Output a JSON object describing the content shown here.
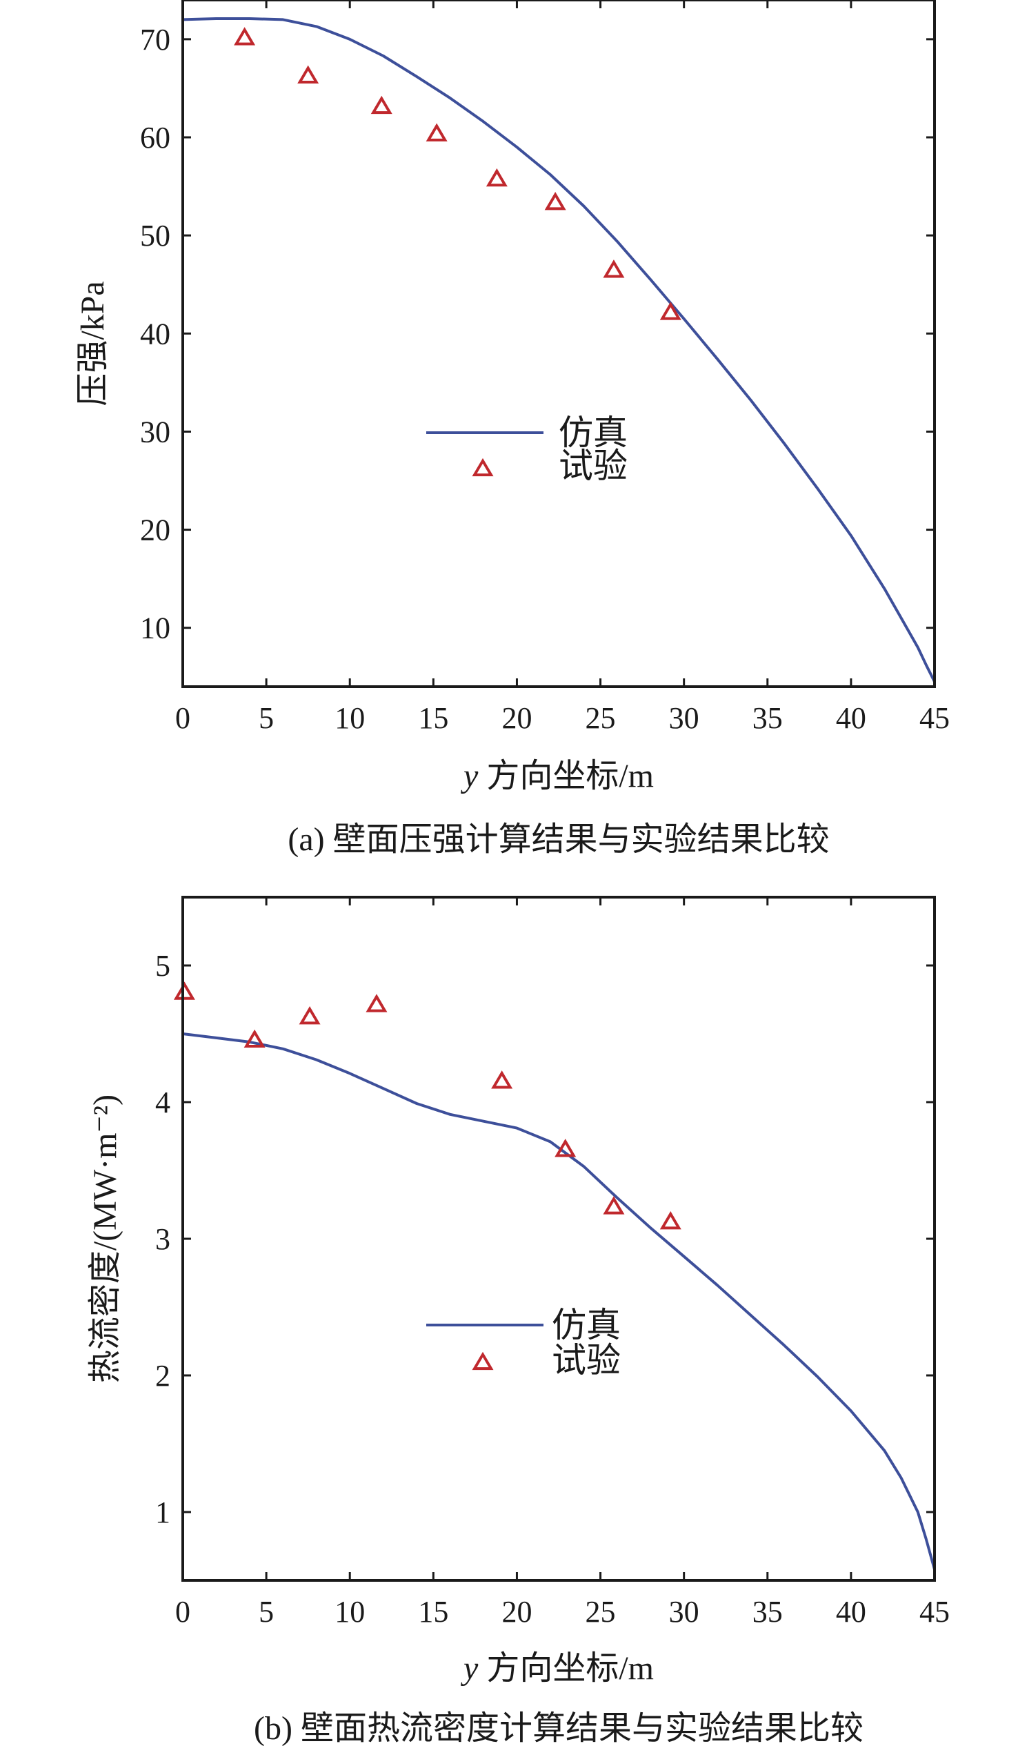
{
  "chart_data": [
    {
      "type": "line",
      "caption": "(a) 壁面压强计算结果与实验结果比较",
      "xlabel_var": "y",
      "xlabel_rest": " 方向坐标/m",
      "ylabel": "压强/kPa",
      "xlim": [
        0,
        45
      ],
      "ylim": [
        4,
        74
      ],
      "xticks": [
        0,
        5,
        10,
        15,
        20,
        25,
        30,
        35,
        40,
        45
      ],
      "yticks": [
        10,
        20,
        30,
        40,
        50,
        60,
        70
      ],
      "legend_position": "center",
      "colors": {
        "line": "#3d4f9a",
        "marker": "#c0282d",
        "axis": "#1a1a1a"
      },
      "series": [
        {
          "name": "仿真",
          "style": "line",
          "x": [
            0,
            2,
            4,
            6,
            8,
            10,
            12,
            14,
            16,
            18,
            20,
            22,
            24,
            26,
            28,
            30,
            32,
            34,
            36,
            38,
            40,
            42,
            43,
            44,
            44.5,
            45
          ],
          "y": [
            72,
            72.1,
            72.1,
            72,
            71.3,
            70,
            68.3,
            66.2,
            64,
            61.6,
            59,
            56.2,
            53,
            49.4,
            45.5,
            41.5,
            37.4,
            33.2,
            28.8,
            24.2,
            19.4,
            14,
            11,
            8,
            6.2,
            4.5
          ]
        },
        {
          "name": "试验",
          "style": "marker",
          "marker": "triangle",
          "x": [
            3.7,
            7.5,
            11.9,
            15.2,
            18.8,
            22.3,
            25.8,
            29.2
          ],
          "y": [
            70.1,
            66.2,
            63.1,
            60.3,
            55.7,
            53.3,
            46.4,
            42.1
          ]
        }
      ]
    },
    {
      "type": "line",
      "caption": "(b) 壁面热流密度计算结果与实验结果比较",
      "xlabel_var": "y",
      "xlabel_rest": " 方向坐标/m",
      "ylabel": "热流密度/(MW·m⁻²)",
      "xlim": [
        0,
        45
      ],
      "ylim": [
        0.5,
        5.5
      ],
      "xticks": [
        0,
        5,
        10,
        15,
        20,
        25,
        30,
        35,
        40,
        45
      ],
      "yticks": [
        1,
        2,
        3,
        4,
        5
      ],
      "legend_position": "center",
      "colors": {
        "line": "#3d4f9a",
        "marker": "#c0282d",
        "axis": "#1a1a1a"
      },
      "series": [
        {
          "name": "仿真",
          "style": "line",
          "x": [
            0,
            2,
            4,
            6,
            8,
            10,
            12,
            14,
            16,
            18,
            20,
            22,
            24,
            26,
            28,
            30,
            32,
            34,
            36,
            38,
            40,
            42,
            43,
            44,
            44.5,
            45
          ],
          "y": [
            4.5,
            4.47,
            4.44,
            4.39,
            4.31,
            4.21,
            4.1,
            3.99,
            3.91,
            3.86,
            3.81,
            3.71,
            3.53,
            3.3,
            3.08,
            2.87,
            2.66,
            2.44,
            2.22,
            1.99,
            1.74,
            1.45,
            1.25,
            1.0,
            0.8,
            0.58
          ]
        },
        {
          "name": "试验",
          "style": "marker",
          "marker": "triangle",
          "x": [
            0.1,
            4.3,
            7.6,
            11.6,
            19.1,
            22.9,
            25.8,
            29.2
          ],
          "y": [
            4.8,
            4.45,
            4.62,
            4.71,
            4.15,
            3.65,
            3.23,
            3.12
          ]
        }
      ]
    }
  ]
}
